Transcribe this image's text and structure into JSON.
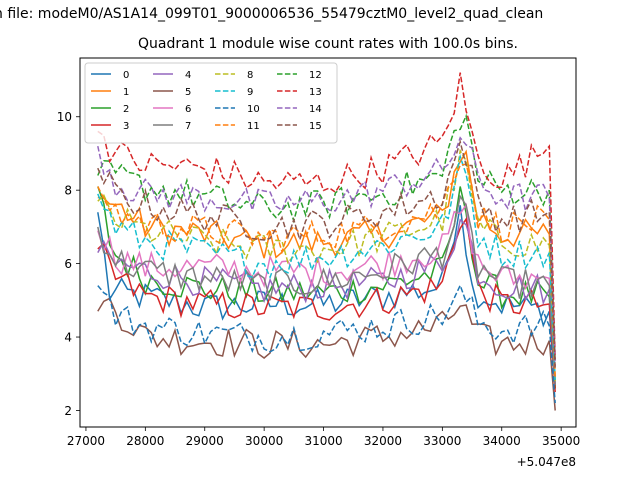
{
  "figure": {
    "suptitle": "h file: modeM0/AS1A14_099T01_9000006536_55479cztM0_level2_quad_clean"
  },
  "chart_data": {
    "type": "line",
    "title": "Quadrant 1 module wise count rates with 100.0s bins.",
    "xlabel": "",
    "ylabel": "",
    "x_offset_label": "+5.047e8",
    "xlim": [
      26900,
      35250
    ],
    "ylim": [
      1.55,
      11.6
    ],
    "x_ticks": [
      27000,
      28000,
      29000,
      30000,
      31000,
      32000,
      33000,
      34000,
      35000
    ],
    "x_tick_labels": [
      "27000",
      "28000",
      "29000",
      "30000",
      "31000",
      "32000",
      "33000",
      "34000",
      "35000"
    ],
    "y_ticks": [
      2,
      4,
      6,
      8,
      10
    ],
    "y_tick_labels": [
      "2",
      "4",
      "6",
      "8",
      "10"
    ],
    "x_start": 27200,
    "x_step": 100,
    "x_end": 34900,
    "grid": false,
    "legend_position": "top-left",
    "legend_columns": 4,
    "series": [
      {
        "name": "0",
        "color": "#1f77b4",
        "dashed": false,
        "anchors": [
          [
            27200,
            7.4
          ],
          [
            27400,
            5.2
          ],
          [
            28000,
            5.1
          ],
          [
            29000,
            4.8
          ],
          [
            30000,
            4.9
          ],
          [
            31000,
            4.9
          ],
          [
            32000,
            5.1
          ],
          [
            33000,
            5.4
          ],
          [
            33300,
            7.8
          ],
          [
            33500,
            5.3
          ],
          [
            34000,
            4.9
          ],
          [
            34800,
            4.7
          ],
          [
            34900,
            2.6
          ]
        ]
      },
      {
        "name": "1",
        "color": "#ff7f0e",
        "dashed": false,
        "anchors": [
          [
            27200,
            7.8
          ],
          [
            27500,
            7.6
          ],
          [
            28000,
            7.0
          ],
          [
            29000,
            6.8
          ],
          [
            30000,
            6.5
          ],
          [
            31000,
            6.6
          ],
          [
            32000,
            6.8
          ],
          [
            33000,
            7.3
          ],
          [
            33350,
            9.3
          ],
          [
            33600,
            7.3
          ],
          [
            34000,
            6.8
          ],
          [
            34800,
            6.8
          ],
          [
            34900,
            2.6
          ]
        ]
      },
      {
        "name": "2",
        "color": "#2ca02c",
        "dashed": false,
        "anchors": [
          [
            27200,
            8.1
          ],
          [
            27450,
            6.3
          ],
          [
            28000,
            5.6
          ],
          [
            29000,
            5.3
          ],
          [
            30000,
            5.2
          ],
          [
            31000,
            5.2
          ],
          [
            32000,
            5.4
          ],
          [
            33000,
            5.8
          ],
          [
            33350,
            8.1
          ],
          [
            33600,
            5.5
          ],
          [
            34000,
            5.2
          ],
          [
            34800,
            5.1
          ],
          [
            34900,
            2.6
          ]
        ]
      },
      {
        "name": "3",
        "color": "#d62728",
        "dashed": false,
        "anchors": [
          [
            27200,
            6.4
          ],
          [
            27500,
            5.6
          ],
          [
            28000,
            5.1
          ],
          [
            29000,
            4.9
          ],
          [
            30000,
            4.8
          ],
          [
            31000,
            4.8
          ],
          [
            32000,
            5.0
          ],
          [
            33000,
            5.4
          ],
          [
            33350,
            7.6
          ],
          [
            33600,
            5.3
          ],
          [
            34000,
            4.9
          ],
          [
            34800,
            4.9
          ],
          [
            34900,
            2.5
          ]
        ]
      },
      {
        "name": "4",
        "color": "#9467bd",
        "dashed": false,
        "anchors": [
          [
            27200,
            6.3
          ],
          [
            27500,
            6.0
          ],
          [
            28000,
            5.8
          ],
          [
            29000,
            5.5
          ],
          [
            30000,
            5.3
          ],
          [
            31000,
            5.4
          ],
          [
            32000,
            5.5
          ],
          [
            33000,
            6.0
          ],
          [
            33350,
            7.3
          ],
          [
            33600,
            5.8
          ],
          [
            34000,
            5.4
          ],
          [
            34800,
            5.3
          ],
          [
            34900,
            2.7
          ]
        ]
      },
      {
        "name": "5",
        "color": "#8c564b",
        "dashed": false,
        "anchors": [
          [
            27200,
            4.7
          ],
          [
            27400,
            4.9
          ],
          [
            28000,
            4.0
          ],
          [
            29000,
            3.9
          ],
          [
            30000,
            3.8
          ],
          [
            31000,
            3.8
          ],
          [
            32000,
            4.0
          ],
          [
            33000,
            4.3
          ],
          [
            33300,
            4.9
          ],
          [
            33600,
            4.0
          ],
          [
            34000,
            3.8
          ],
          [
            34800,
            3.9
          ],
          [
            34900,
            2.0
          ]
        ]
      },
      {
        "name": "6",
        "color": "#e377c2",
        "dashed": false,
        "anchors": [
          [
            27200,
            6.9
          ],
          [
            27500,
            6.2
          ],
          [
            28000,
            5.9
          ],
          [
            29000,
            5.9
          ],
          [
            30000,
            5.8
          ],
          [
            31000,
            5.8
          ],
          [
            32000,
            6.0
          ],
          [
            33000,
            6.4
          ],
          [
            33350,
            7.6
          ],
          [
            33600,
            6.0
          ],
          [
            34000,
            5.6
          ],
          [
            34800,
            5.6
          ],
          [
            34900,
            2.9
          ]
        ]
      },
      {
        "name": "7",
        "color": "#7f7f7f",
        "dashed": false,
        "anchors": [
          [
            27200,
            7.0
          ],
          [
            27500,
            6.1
          ],
          [
            28000,
            5.8
          ],
          [
            29000,
            5.6
          ],
          [
            30000,
            5.4
          ],
          [
            31000,
            5.5
          ],
          [
            32000,
            5.8
          ],
          [
            33000,
            6.3
          ],
          [
            33350,
            7.6
          ],
          [
            33600,
            5.9
          ],
          [
            34000,
            5.5
          ],
          [
            34800,
            5.4
          ],
          [
            34900,
            2.7
          ]
        ]
      },
      {
        "name": "8",
        "color": "#bcbd22",
        "dashed": true,
        "anchors": [
          [
            27200,
            7.7
          ],
          [
            27500,
            7.2
          ],
          [
            28000,
            6.9
          ],
          [
            29000,
            6.6
          ],
          [
            30000,
            6.4
          ],
          [
            31000,
            6.4
          ],
          [
            32000,
            6.7
          ],
          [
            33000,
            7.2
          ],
          [
            33350,
            9.0
          ],
          [
            33600,
            7.0
          ],
          [
            34000,
            6.6
          ],
          [
            34800,
            6.5
          ],
          [
            34900,
            2.8
          ]
        ]
      },
      {
        "name": "9",
        "color": "#17becf",
        "dashed": true,
        "anchors": [
          [
            27200,
            7.9
          ],
          [
            27500,
            7.0
          ],
          [
            28000,
            6.6
          ],
          [
            29000,
            6.3
          ],
          [
            30000,
            6.0
          ],
          [
            31000,
            6.2
          ],
          [
            32000,
            6.5
          ],
          [
            33000,
            7.0
          ],
          [
            33350,
            8.8
          ],
          [
            33600,
            6.8
          ],
          [
            34000,
            6.3
          ],
          [
            34800,
            6.3
          ],
          [
            34900,
            2.8
          ]
        ]
      },
      {
        "name": "10",
        "color": "#1f77b4",
        "dashed": true,
        "anchors": [
          [
            27200,
            5.4
          ],
          [
            27500,
            4.6
          ],
          [
            28000,
            4.3
          ],
          [
            29000,
            4.1
          ],
          [
            30000,
            4.0
          ],
          [
            31000,
            4.1
          ],
          [
            32000,
            4.3
          ],
          [
            33000,
            4.6
          ],
          [
            33350,
            5.2
          ],
          [
            33600,
            4.4
          ],
          [
            34000,
            4.2
          ],
          [
            34800,
            4.3
          ],
          [
            34900,
            2.2
          ]
        ]
      },
      {
        "name": "11",
        "color": "#ff7f0e",
        "dashed": true,
        "anchors": [
          [
            27200,
            8.1
          ],
          [
            27500,
            7.4
          ],
          [
            28000,
            7.1
          ],
          [
            29000,
            6.9
          ],
          [
            30000,
            6.7
          ],
          [
            31000,
            6.8
          ],
          [
            32000,
            7.0
          ],
          [
            33000,
            7.5
          ],
          [
            33350,
            9.3
          ],
          [
            33600,
            7.3
          ],
          [
            34000,
            7.0
          ],
          [
            34800,
            7.2
          ],
          [
            34900,
            2.9
          ]
        ]
      },
      {
        "name": "12",
        "color": "#2ca02c",
        "dashed": true,
        "anchors": [
          [
            27200,
            8.4
          ],
          [
            27500,
            8.4
          ],
          [
            28000,
            8.1
          ],
          [
            29000,
            7.8
          ],
          [
            30000,
            7.5
          ],
          [
            31000,
            7.6
          ],
          [
            32000,
            7.9
          ],
          [
            33000,
            8.4
          ],
          [
            33350,
            10.3
          ],
          [
            33600,
            8.3
          ],
          [
            34000,
            8.0
          ],
          [
            34800,
            8.0
          ],
          [
            34900,
            3.3
          ]
        ]
      },
      {
        "name": "13",
        "color": "#d62728",
        "dashed": true,
        "anchors": [
          [
            27200,
            9.6
          ],
          [
            27500,
            9.0
          ],
          [
            28000,
            8.7
          ],
          [
            29000,
            8.6
          ],
          [
            30000,
            8.2
          ],
          [
            31000,
            8.2
          ],
          [
            32000,
            8.6
          ],
          [
            33000,
            9.3
          ],
          [
            33300,
            10.9
          ],
          [
            33600,
            8.8
          ],
          [
            34000,
            8.3
          ],
          [
            34800,
            9.2
          ],
          [
            34900,
            3.4
          ]
        ]
      },
      {
        "name": "14",
        "color": "#9467bd",
        "dashed": true,
        "anchors": [
          [
            27200,
            9.2
          ],
          [
            27500,
            8.2
          ],
          [
            28000,
            7.9
          ],
          [
            29000,
            7.8
          ],
          [
            30000,
            7.6
          ],
          [
            31000,
            7.7
          ],
          [
            32000,
            8.0
          ],
          [
            33000,
            8.5
          ],
          [
            33350,
            9.6
          ],
          [
            33600,
            8.2
          ],
          [
            34000,
            7.8
          ],
          [
            34800,
            7.8
          ],
          [
            34900,
            3.2
          ]
        ]
      },
      {
        "name": "15",
        "color": "#8c564b",
        "dashed": true,
        "anchors": [
          [
            27200,
            8.6
          ],
          [
            27500,
            7.9
          ],
          [
            28000,
            7.6
          ],
          [
            29000,
            7.3
          ],
          [
            30000,
            7.0
          ],
          [
            31000,
            7.1
          ],
          [
            32000,
            7.4
          ],
          [
            33000,
            7.9
          ],
          [
            33350,
            9.4
          ],
          [
            33600,
            7.6
          ],
          [
            34000,
            7.2
          ],
          [
            34800,
            7.4
          ],
          [
            34900,
            3.1
          ]
        ]
      }
    ]
  }
}
